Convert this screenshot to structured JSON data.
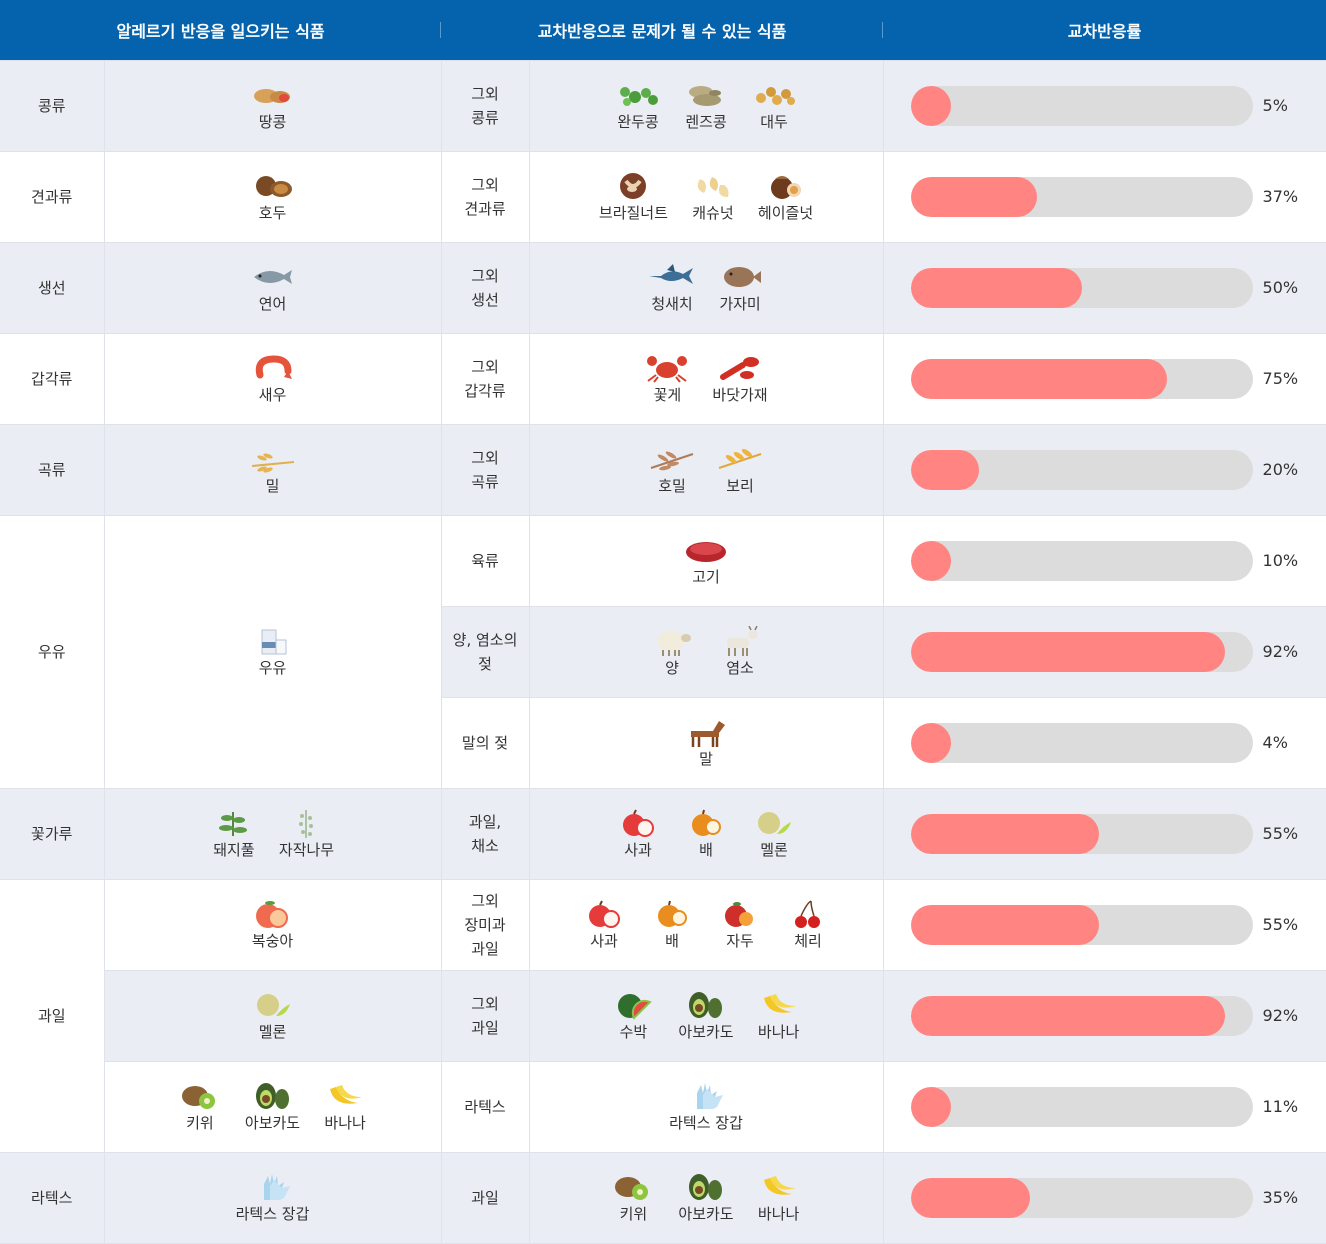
{
  "header": {
    "col1": "알레르기 반응을 일으키는 식품",
    "col2": "교차반응으로 문제가 될 수 있는 식품",
    "col3": "교차반응률"
  },
  "colors": {
    "header_bg": "#0563ae",
    "bar_fill": "#ff8482",
    "bar_track": "#dcdcdc",
    "row_shade": "#eaedf4"
  },
  "rows": [
    {
      "category": "콩류",
      "allergen_items": [
        {
          "name": "땅콩",
          "icon": "peanut-icon"
        }
      ],
      "cross_label": "그외\n콩류",
      "cross_items": [
        {
          "name": "완두콩",
          "icon": "pea-icon"
        },
        {
          "name": "렌즈콩",
          "icon": "lentil-icon"
        },
        {
          "name": "대두",
          "icon": "soybean-icon"
        }
      ],
      "rate": 5,
      "rate_label": "5%"
    },
    {
      "category": "견과류",
      "allergen_items": [
        {
          "name": "호두",
          "icon": "walnut-icon"
        }
      ],
      "cross_label": "그외\n견과류",
      "cross_items": [
        {
          "name": "브라질너트",
          "icon": "brazil-nut-icon"
        },
        {
          "name": "캐슈넛",
          "icon": "cashew-icon"
        },
        {
          "name": "헤이즐넛",
          "icon": "hazelnut-icon"
        }
      ],
      "rate": 37,
      "rate_label": "37%"
    },
    {
      "category": "생선",
      "allergen_items": [
        {
          "name": "연어",
          "icon": "salmon-icon"
        }
      ],
      "cross_label": "그외\n생선",
      "cross_items": [
        {
          "name": "청새치",
          "icon": "marlin-icon"
        },
        {
          "name": "가자미",
          "icon": "flatfish-icon"
        }
      ],
      "rate": 50,
      "rate_label": "50%"
    },
    {
      "category": "갑각류",
      "allergen_items": [
        {
          "name": "새우",
          "icon": "shrimp-icon"
        }
      ],
      "cross_label": "그외\n갑각류",
      "cross_items": [
        {
          "name": "꽃게",
          "icon": "crab-icon"
        },
        {
          "name": "바닷가재",
          "icon": "lobster-icon"
        }
      ],
      "rate": 75,
      "rate_label": "75%"
    },
    {
      "category": "곡류",
      "allergen_items": [
        {
          "name": "밀",
          "icon": "wheat-icon"
        }
      ],
      "cross_label": "그외\n곡류",
      "cross_items": [
        {
          "name": "호밀",
          "icon": "rye-icon"
        },
        {
          "name": "보리",
          "icon": "barley-icon"
        }
      ],
      "rate": 20,
      "rate_label": "20%"
    },
    {
      "category": "우유",
      "allergen_items": [
        {
          "name": "우유",
          "icon": "milk-icon"
        }
      ],
      "cross_label": "육류",
      "cross_items": [
        {
          "name": "고기",
          "icon": "meat-icon"
        }
      ],
      "rate": 10,
      "rate_label": "10%"
    },
    {
      "cross_label": "양, 염소의\n젖",
      "cross_items": [
        {
          "name": "양",
          "icon": "sheep-icon"
        },
        {
          "name": "염소",
          "icon": "goat-icon"
        }
      ],
      "rate": 92,
      "rate_label": "92%"
    },
    {
      "cross_label": "말의 젖",
      "cross_items": [
        {
          "name": "말",
          "icon": "horse-icon"
        }
      ],
      "rate": 4,
      "rate_label": "4%"
    },
    {
      "category": "꽃가루",
      "allergen_items": [
        {
          "name": "돼지풀",
          "icon": "ragweed-icon"
        },
        {
          "name": "자작나무",
          "icon": "birch-icon"
        }
      ],
      "cross_label": "과일,\n채소",
      "cross_items": [
        {
          "name": "사과",
          "icon": "apple-icon"
        },
        {
          "name": "배",
          "icon": "pear-icon"
        },
        {
          "name": "멜론",
          "icon": "melon-icon"
        }
      ],
      "rate": 55,
      "rate_label": "55%"
    },
    {
      "category": "과일",
      "allergen_items": [
        {
          "name": "복숭아",
          "icon": "peach-icon"
        }
      ],
      "cross_label": "그외\n장미과\n과일",
      "cross_items": [
        {
          "name": "사과",
          "icon": "apple-icon"
        },
        {
          "name": "배",
          "icon": "pear-icon"
        },
        {
          "name": "자두",
          "icon": "plum-icon"
        },
        {
          "name": "체리",
          "icon": "cherry-icon"
        }
      ],
      "rate": 55,
      "rate_label": "55%"
    },
    {
      "allergen_items": [
        {
          "name": "멜론",
          "icon": "melon-icon"
        }
      ],
      "cross_label": "그외\n과일",
      "cross_items": [
        {
          "name": "수박",
          "icon": "watermelon-icon"
        },
        {
          "name": "아보카도",
          "icon": "avocado-icon"
        },
        {
          "name": "바나나",
          "icon": "banana-icon"
        }
      ],
      "rate": 92,
      "rate_label": "92%"
    },
    {
      "allergen_items": [
        {
          "name": "키위",
          "icon": "kiwi-icon"
        },
        {
          "name": "아보카도",
          "icon": "avocado-icon"
        },
        {
          "name": "바나나",
          "icon": "banana-icon"
        }
      ],
      "cross_label": "라텍스",
      "cross_items": [
        {
          "name": "라텍스 장갑",
          "icon": "latex-glove-icon"
        }
      ],
      "rate": 11,
      "rate_label": "11%"
    },
    {
      "category": "라텍스",
      "allergen_items": [
        {
          "name": "라텍스 장갑",
          "icon": "latex-glove-icon"
        }
      ],
      "cross_label": "과일",
      "cross_items": [
        {
          "name": "키위",
          "icon": "kiwi-icon"
        },
        {
          "name": "아보카도",
          "icon": "avocado-icon"
        },
        {
          "name": "바나나",
          "icon": "banana-icon"
        }
      ],
      "rate": 35,
      "rate_label": "35%"
    }
  ]
}
